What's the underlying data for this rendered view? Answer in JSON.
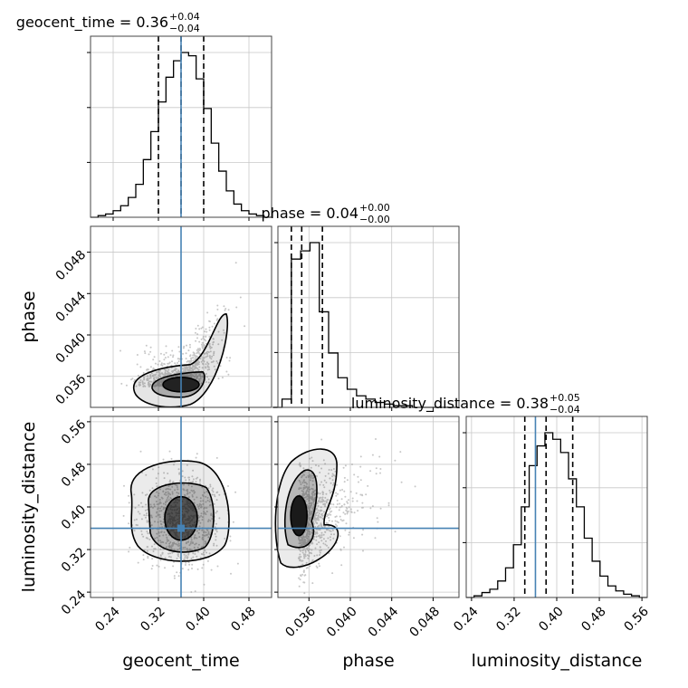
{
  "chart_data": {
    "type": "corner",
    "parameters": [
      "geocent_time",
      "phase",
      "luminosity_distance"
    ],
    "truths": [
      0.36,
      null,
      0.36
    ],
    "truth_color": "#4682b4",
    "titles": [
      {
        "text": "geocent_time = 0.36",
        "sup": "+0.04",
        "sub": "−0.04"
      },
      {
        "text": "phase = 0.04",
        "sup": "+0.00",
        "sub": "−0.00"
      },
      {
        "text": "luminosity_distance = 0.38",
        "sup": "+0.05",
        "sub": "−0.04"
      }
    ],
    "axis_labels": [
      "geocent_time",
      "phase",
      "luminosity_distance"
    ],
    "ranges": [
      [
        0.2,
        0.52
      ],
      [
        0.033,
        0.0505
      ],
      [
        0.23,
        0.57
      ]
    ],
    "ticks": [
      {
        "values": [
          0.24,
          0.32,
          0.4,
          0.48
        ],
        "labels": [
          "0.24",
          "0.32",
          "0.40",
          "0.48"
        ]
      },
      {
        "values": [
          0.036,
          0.04,
          0.044,
          0.048
        ],
        "labels": [
          "0.036",
          "0.040",
          "0.044",
          "0.048"
        ]
      },
      {
        "values": [
          0.24,
          0.32,
          0.4,
          0.48,
          0.56
        ],
        "labels": [
          "0.24",
          "0.32",
          "0.40",
          "0.48",
          "0.56"
        ]
      }
    ],
    "quantiles": [
      [
        0.32,
        0.36,
        0.4
      ],
      [
        0.0343,
        0.0353,
        0.0373
      ],
      [
        0.34,
        0.38,
        0.43
      ]
    ],
    "histograms": [
      {
        "edges_range": [
          0.2,
          0.52
        ],
        "counts": [
          0,
          1,
          2,
          4,
          7,
          12,
          20,
          35,
          52,
          70,
          85,
          95,
          100,
          98,
          84,
          66,
          45,
          28,
          16,
          8,
          4,
          2,
          1,
          0
        ]
      },
      {
        "edges_range": [
          0.0325,
          0.0505
        ],
        "counts": [
          0,
          5,
          90,
          95,
          100,
          58,
          33,
          18,
          11,
          7,
          5,
          3,
          2,
          1,
          1,
          0,
          0,
          0,
          0,
          0
        ]
      },
      {
        "edges_range": [
          0.23,
          0.57
        ],
        "counts": [
          0,
          1,
          3,
          5,
          10,
          18,
          32,
          55,
          80,
          92,
          100,
          96,
          88,
          72,
          55,
          36,
          22,
          13,
          7,
          4,
          2,
          1,
          0
        ]
      }
    ],
    "grid": true
  }
}
